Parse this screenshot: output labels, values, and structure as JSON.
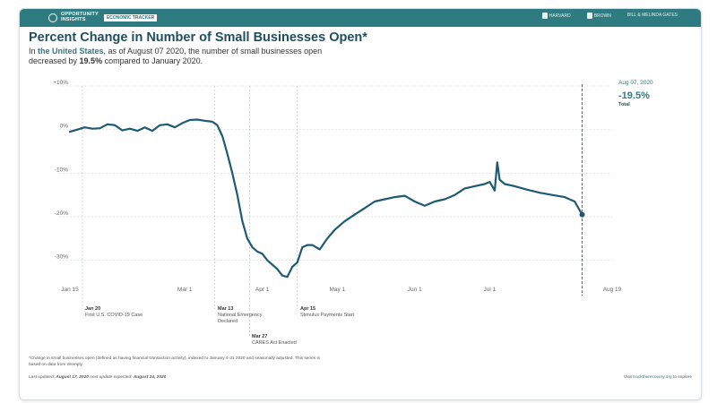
{
  "header": {
    "brand_line1": "OPPORTUNITY",
    "brand_line2": "INSIGHTS",
    "brand_tag": "ECONOMIC TRACKER",
    "partners": [
      "HARVARD",
      "BROWN",
      "BILL & MELINDA GATES"
    ]
  },
  "title": "Percent Change in Number of Small Businesses Open*",
  "subtitle": {
    "p1": "In ",
    "place": "the United States",
    "p2": ", as of August 07 2020, the number of small businesses open decreased by ",
    "value": "19.5%",
    "p3": " compared to January 2020."
  },
  "side": {
    "date": "Aug 07, 2020",
    "value": "-19.5%",
    "label": "Total"
  },
  "events": [
    {
      "date": "Jan 20",
      "text": "First U.S. COVID-19 Case"
    },
    {
      "date": "Mar 13",
      "text": "National Emergency Declared"
    },
    {
      "date": "Mar 27",
      "text": "CARES Act Enacted"
    },
    {
      "date": "Apr 15",
      "text": "Stimulus Payments Start"
    }
  ],
  "footnote": "*Change in small businesses open (defined as having financial transaction activity), indexed to January 4-31 2020 and seasonally adjusted. This series is based on data from Womply.",
  "updated": {
    "p1": "Last updated: ",
    "last": "August 17, 2020",
    "p2": "     next update expected: ",
    "next": "August 24, 2020"
  },
  "visit": {
    "p1": "Visit ",
    "link": "tracktherecovery.org",
    "p2": " to explore"
  },
  "colors": {
    "line": "#1f5a73",
    "accent": "#2e7b82",
    "grid": "#cfd8da"
  },
  "chart_data": {
    "type": "line",
    "title": "Percent Change in Number of Small Businesses Open*",
    "xlabel": "",
    "ylabel": "",
    "ylim": [
      -35,
      10
    ],
    "xlim": [
      "2020-01-15",
      "2020-08-19"
    ],
    "y_ticks": [
      10,
      0,
      -10,
      -20,
      -30
    ],
    "y_tick_labels": [
      "+10%",
      "0%",
      "-10%",
      "-20%",
      "-30%"
    ],
    "x_ticks": [
      "2020-01-15",
      "2020-03-01",
      "2020-04-01",
      "2020-05-01",
      "2020-06-01",
      "2020-07-01",
      "2020-08-19"
    ],
    "x_tick_labels": [
      "Jan 15",
      "Mar 1",
      "Apr 1",
      "May 1",
      "Jun 1",
      "Jul 1",
      "Aug 19"
    ],
    "grid": true,
    "event_dates": [
      "2020-01-20",
      "2020-03-13",
      "2020-03-27",
      "2020-04-15"
    ],
    "highlight_date": "2020-08-07",
    "series": [
      {
        "x": [
          "2020-01-15",
          "2020-01-18",
          "2020-01-21",
          "2020-01-24",
          "2020-01-27",
          "2020-01-30",
          "2020-02-02",
          "2020-02-05",
          "2020-02-08",
          "2020-02-11",
          "2020-02-14",
          "2020-02-17",
          "2020-02-20",
          "2020-02-23",
          "2020-02-26",
          "2020-02-29",
          "2020-03-03",
          "2020-03-06",
          "2020-03-09",
          "2020-03-12",
          "2020-03-14",
          "2020-03-16",
          "2020-03-18",
          "2020-03-20",
          "2020-03-22",
          "2020-03-24",
          "2020-03-26",
          "2020-03-28",
          "2020-03-30",
          "2020-04-01",
          "2020-04-03",
          "2020-04-05",
          "2020-04-07",
          "2020-04-09",
          "2020-04-11",
          "2020-04-13",
          "2020-04-15",
          "2020-04-17",
          "2020-04-19",
          "2020-04-21",
          "2020-04-24",
          "2020-04-27",
          "2020-04-30",
          "2020-05-04",
          "2020-05-08",
          "2020-05-12",
          "2020-05-16",
          "2020-05-20",
          "2020-05-24",
          "2020-05-28",
          "2020-06-01",
          "2020-06-05",
          "2020-06-09",
          "2020-06-13",
          "2020-06-17",
          "2020-06-21",
          "2020-06-25",
          "2020-06-29",
          "2020-07-01",
          "2020-07-03",
          "2020-07-04",
          "2020-07-05",
          "2020-07-07",
          "2020-07-11",
          "2020-07-16",
          "2020-07-21",
          "2020-07-26",
          "2020-07-31",
          "2020-08-04",
          "2020-08-07"
        ],
        "values": [
          -0.5,
          0,
          0.5,
          0.2,
          0.3,
          1.2,
          1.0,
          -0.2,
          0.2,
          -0.3,
          0.5,
          -0.3,
          1.0,
          1.2,
          0.5,
          1.5,
          2.2,
          2.3,
          2.0,
          1.8,
          1.0,
          -1.5,
          -5.5,
          -10,
          -15,
          -21,
          -25,
          -27,
          -28,
          -28.5,
          -30,
          -31,
          -32,
          -33.5,
          -33.8,
          -31.5,
          -30.5,
          -27,
          -26.5,
          -26.5,
          -27.5,
          -25,
          -23,
          -21,
          -19.5,
          -18,
          -16.5,
          -16,
          -15.5,
          -15.2,
          -16.5,
          -17.5,
          -16.5,
          -16,
          -15,
          -13.5,
          -13,
          -12.5,
          -12,
          -14,
          -7.5,
          -11.5,
          -12.5,
          -13,
          -13.8,
          -14.5,
          -15,
          -15.5,
          -16.5,
          -19.5
        ]
      }
    ]
  }
}
